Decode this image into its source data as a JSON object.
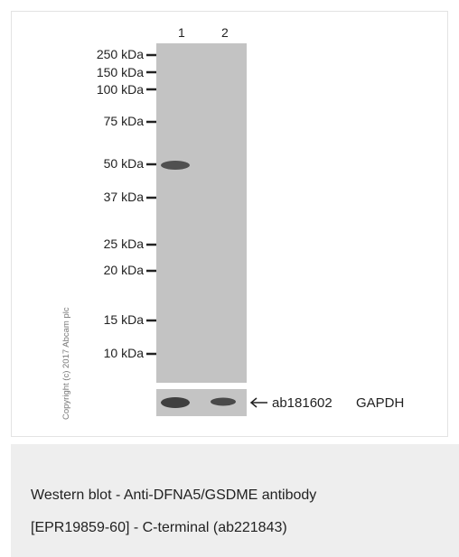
{
  "blot": {
    "lane_labels": [
      "1",
      "2"
    ],
    "markers": [
      "250 kDa",
      "150 kDa",
      "100 kDa",
      "75 kDa",
      "50 kDa",
      "37 kDa",
      "25 kDa",
      "20 kDa",
      "15 kDa",
      "10 kDa"
    ],
    "copyright": "Copyright (c) 2017 Abcam plc",
    "loading_control": {
      "antibody": "ab181602",
      "target": "GAPDH"
    },
    "colors": {
      "membrane": "#c3c3c3",
      "band": "#505050",
      "marker_tick": "#222222"
    }
  },
  "caption": {
    "line1": "Western blot - Anti-DFNA5/GSDME antibody",
    "line2": "[EPR19859-60] - C-terminal (ab221843)"
  }
}
